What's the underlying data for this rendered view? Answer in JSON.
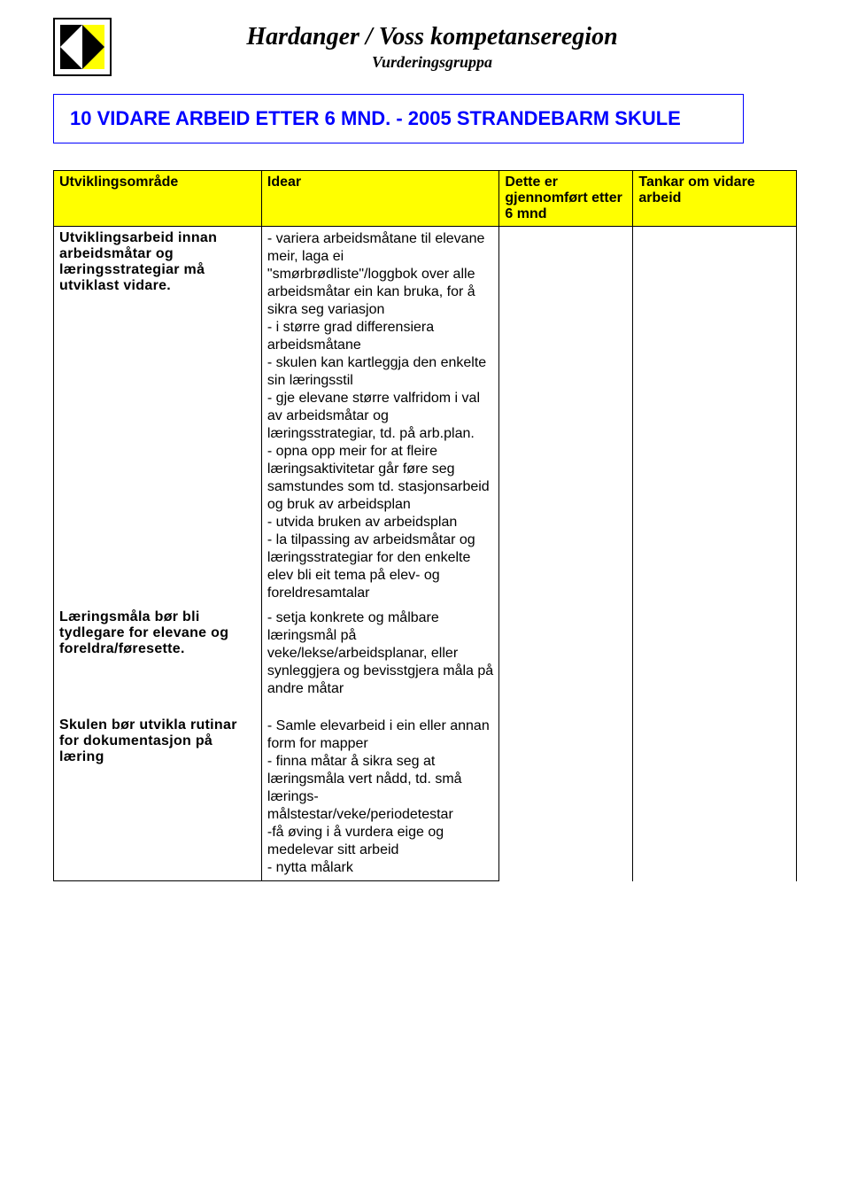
{
  "header": {
    "title": "Hardanger / Voss kompetanseregion",
    "subtitle": "Vurderingsgruppa"
  },
  "titleBox": "10 VIDARE ARBEID ETTER 6 MND. - 2005 STRANDEBARM SKULE",
  "table": {
    "headers": {
      "c1": "Utviklingsområde",
      "c2": "Idear",
      "c3": "Dette er gjennomført etter 6 mnd",
      "c4": "Tankar om vidare arbeid"
    },
    "rows": [
      {
        "label": "Utviklingsarbeid innan arbeidsmåtar og læringsstrategiar må utviklast vidare.",
        "idear": "- variera arbeidsmåtane til elevane meir, laga ei \"smørbrødliste\"/loggbok over alle arbeidsmåtar ein kan bruka, for å sikra seg variasjon\n- i større grad differensiera arbeidsmåtane\n- skulen kan kartleggja den enkelte sin læringsstil\n- gje elevane større valfridom i val av arbeidsmåtar og læringsstrategiar, td. på arb.plan.\n- opna opp meir for at fleire læringsaktivitetar går føre seg samstundes som td. stasjonsarbeid og bruk av arbeidsplan\n- utvida bruken av arbeidsplan\n- la tilpassing av arbeidsmåtar og læringsstrategiar for den enkelte elev bli eit tema på elev- og foreldresamtalar"
      },
      {
        "label": "Læringsmåla bør bli tydlegare for elevane og foreldra/føresette.",
        "idear": "- setja konkrete og målbare læringsmål på veke/lekse/arbeidsplanar, eller synleggjera og bevisstgjera måla på andre måtar"
      },
      {
        "label": "Skulen bør utvikla rutinar for dokumentasjon på læring",
        "idear": "- Samle elevarbeid i ein eller annan form for mapper\n- finna måtar å sikra seg at læringsmåla vert nådd, td. små lærings-målstestar/veke/periodetestar\n-få øving i å vurdera eige og medelevar sitt arbeid\n- nytta målark"
      }
    ]
  },
  "colors": {
    "header_bg": "#ffff00",
    "title_border": "#0000ff",
    "title_text": "#0000ff",
    "border": "#000000",
    "background": "#ffffff"
  }
}
